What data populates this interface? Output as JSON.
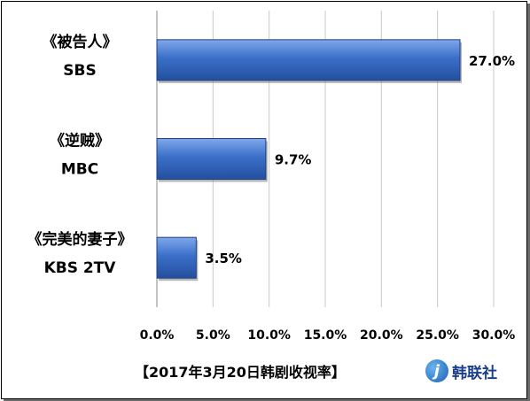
{
  "chart_data": {
    "type": "bar",
    "orientation": "horizontal",
    "categories": [
      {
        "show": "《被告人》",
        "network": "SBS"
      },
      {
        "show": "《逆贼》",
        "network": "MBC"
      },
      {
        "show": "《完美的妻子》",
        "network": "KBS 2TV"
      }
    ],
    "values": [
      27.0,
      9.7,
      3.5
    ],
    "data_labels": [
      "27.0%",
      "9.7%",
      "3.5%"
    ],
    "xlim": [
      0,
      30
    ],
    "x_ticks": [
      "0.0%",
      "5.0%",
      "10.0%",
      "15.0%",
      "20.0%",
      "25.0%",
      "30.0%"
    ],
    "grid": "vertical",
    "bar_color": "#3b6fc9",
    "caption": "【2017年3月20日韩剧收视率】"
  },
  "logo": {
    "mark": "j",
    "text": "韩联社"
  }
}
